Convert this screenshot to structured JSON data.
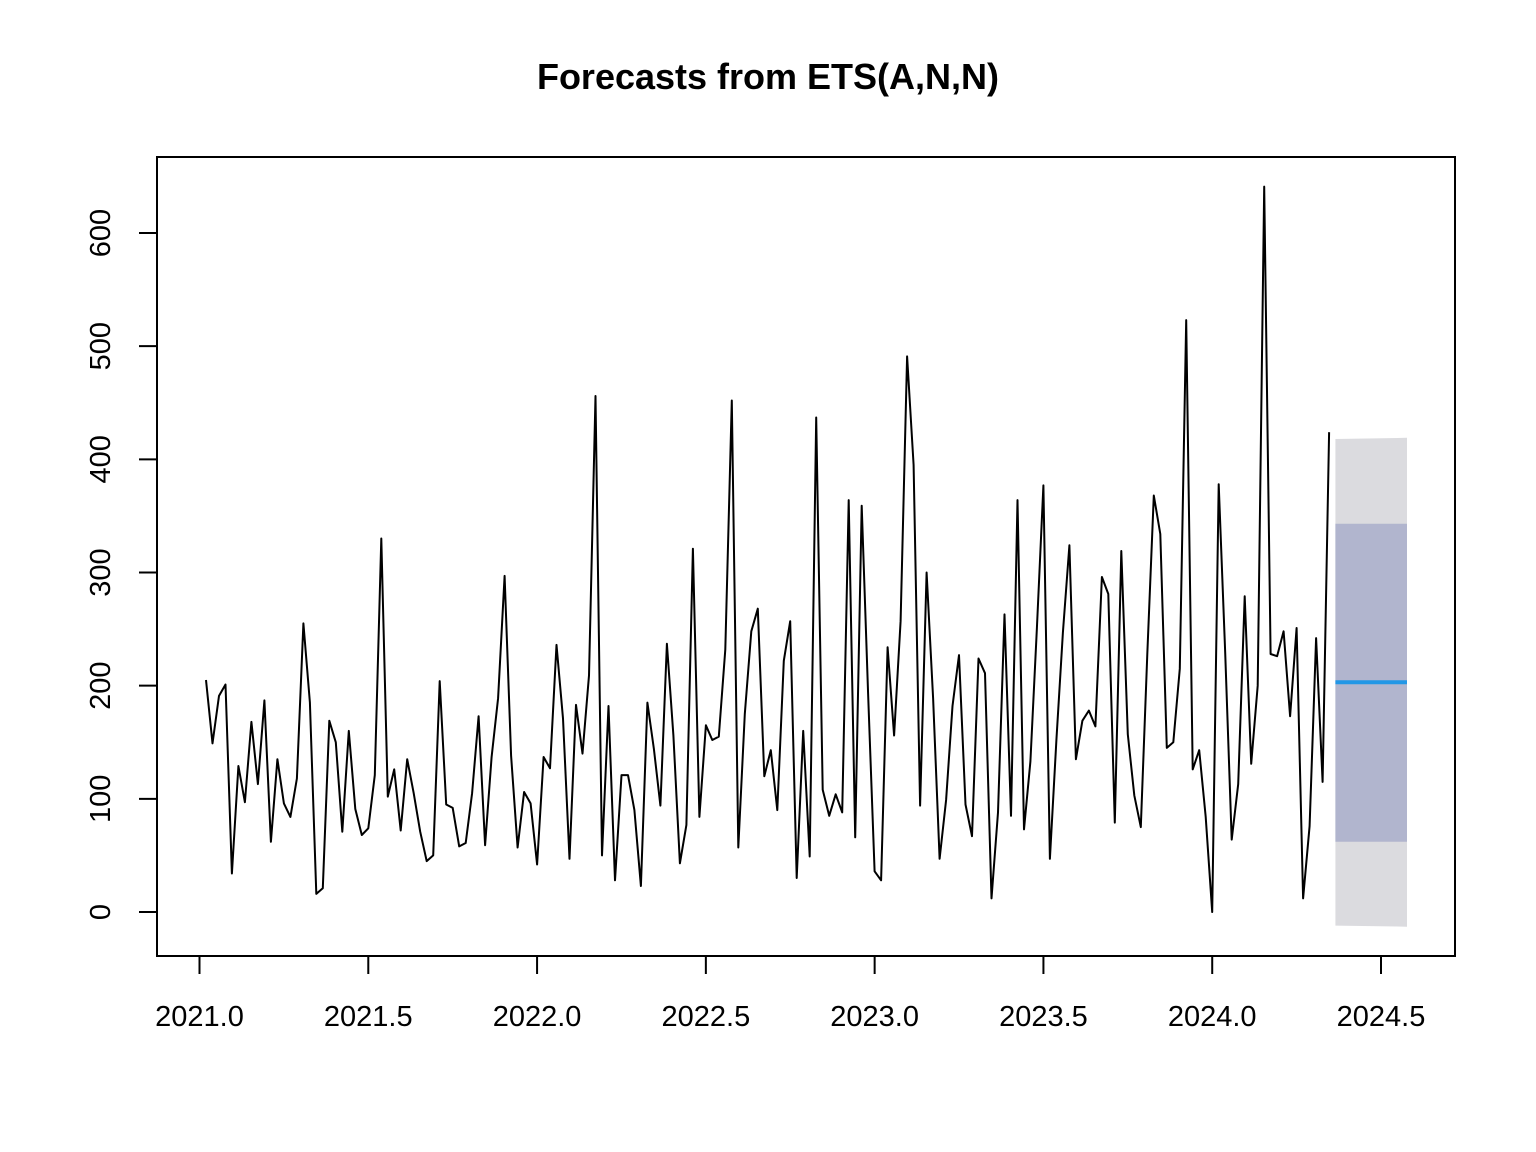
{
  "chart_data": {
    "type": "line",
    "title": "Forecasts from ETS(A,N,N)",
    "xlabel": "",
    "ylabel": "",
    "xlim": [
      2021.0,
      2024.5
    ],
    "ylim": [
      -40,
      670
    ],
    "x_ticks": [
      2021.0,
      2021.5,
      2022.0,
      2022.5,
      2023.0,
      2023.5,
      2024.0,
      2024.5
    ],
    "x_tick_labels": [
      "2021.0",
      "2021.5",
      "2022.0",
      "2022.5",
      "2023.0",
      "2023.5",
      "2024.0",
      "2024.5"
    ],
    "y_ticks": [
      0,
      100,
      200,
      300,
      400,
      500,
      600
    ],
    "y_tick_labels": [
      "0",
      "100",
      "200",
      "300",
      "400",
      "500",
      "600"
    ],
    "grid": false,
    "series": [
      {
        "role": "observed",
        "color": "#000000",
        "x_start": 2021.0192,
        "x_step": 0.019231,
        "values": [
          205,
          149,
          191,
          201,
          34,
          129,
          97,
          168,
          113,
          187,
          62,
          135,
          96,
          84,
          118,
          255,
          185,
          16,
          21,
          169,
          150,
          71,
          160,
          91,
          68,
          74,
          121,
          330,
          102,
          126,
          72,
          135,
          105,
          71,
          45,
          50,
          204,
          95,
          92,
          58,
          61,
          105,
          173,
          59,
          137,
          189,
          297,
          138,
          57,
          106,
          96,
          42,
          137,
          127,
          236,
          171,
          47,
          183,
          140,
          209,
          456,
          50,
          182,
          28,
          121,
          121,
          90,
          23,
          185,
          144,
          94,
          237,
          156,
          43,
          77,
          321,
          84,
          165,
          152,
          155,
          232,
          452,
          57,
          175,
          248,
          268,
          120,
          143,
          90,
          222,
          257,
          30,
          160,
          49,
          437,
          108,
          85,
          104,
          88,
          364,
          66,
          359,
          193,
          36,
          28,
          234,
          156,
          257,
          491,
          395,
          94,
          300,
          189,
          47,
          99,
          182,
          227,
          95,
          67,
          224,
          211,
          12,
          88,
          263,
          85,
          364,
          73,
          133,
          251,
          377,
          47,
          152,
          247,
          324,
          135,
          169,
          178,
          164,
          296,
          281,
          79,
          319,
          157,
          103,
          75,
          228,
          368,
          334,
          145,
          150,
          215,
          523,
          126,
          143,
          84,
          0,
          378,
          229,
          64,
          113,
          279,
          131,
          200,
          641,
          228,
          226,
          248,
          173,
          251,
          12,
          76,
          242,
          115,
          424
        ]
      },
      {
        "role": "point-forecast",
        "color": "#2297E6",
        "x": [
          2024.365,
          2024.577
        ],
        "values": [
          203,
          203
        ]
      }
    ],
    "intervals": [
      {
        "level": "95%",
        "color": "#DBDBDF",
        "x": [
          2024.365,
          2024.577
        ],
        "lower": [
          -12,
          -13
        ],
        "upper": [
          418,
          419
        ]
      },
      {
        "level": "80%",
        "color": "#B1B5CE",
        "x": [
          2024.365,
          2024.577
        ],
        "lower": [
          62,
          62
        ],
        "upper": [
          343,
          343
        ]
      }
    ]
  }
}
